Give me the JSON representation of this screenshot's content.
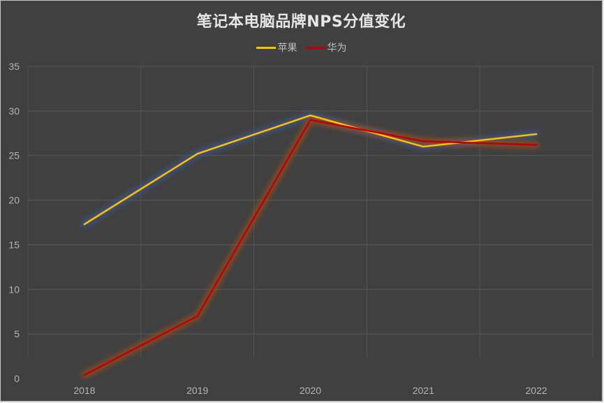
{
  "chart_data": {
    "type": "line",
    "title": "笔记本电脑品牌NPS分值变化",
    "xlabel": "",
    "ylabel": "",
    "categories": [
      "2018",
      "2019",
      "2020",
      "2021",
      "2022"
    ],
    "series": [
      {
        "name": "苹果",
        "color": "#ffc000",
        "values": [
          17.3,
          25.2,
          29.5,
          26.0,
          27.4
        ]
      },
      {
        "name": "华为",
        "color": "#c00000",
        "values": [
          0.4,
          7.0,
          29.0,
          26.6,
          26.2
        ]
      }
    ],
    "ylim": [
      0,
      35
    ],
    "yticks": [
      0,
      5,
      10,
      15,
      20,
      25,
      30,
      35
    ],
    "grid": true,
    "legend_position": "top"
  },
  "colors": {
    "background": "#404040",
    "gridline": "#595959",
    "text": "#bfbfbf",
    "title": "#e6e6e6"
  }
}
